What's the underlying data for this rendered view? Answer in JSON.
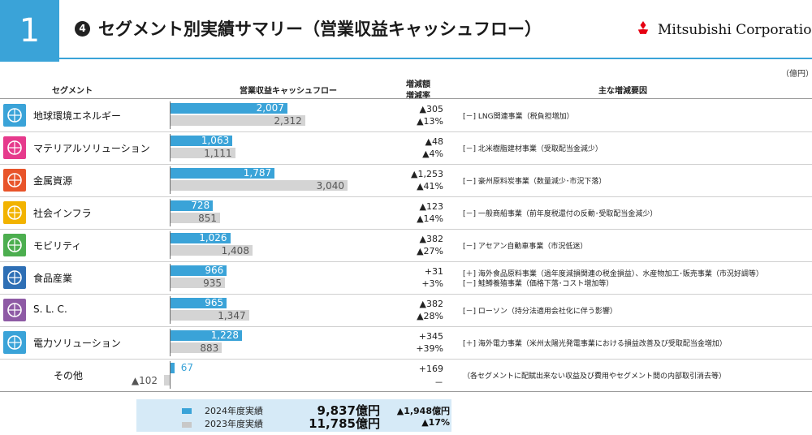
{
  "header": {
    "slide_number": "1",
    "title_marker": "4",
    "title": "セグメント別実績サマリー（営業収益キャッシュフロー）",
    "logo_text": "Mitsubishi Corporation"
  },
  "table": {
    "unit": "（億円）",
    "columns": {
      "segment": "セグメント",
      "ocf": "営業収益キャッシュフロー",
      "change_line1": "増減額",
      "change_line2": "増減率",
      "reasons": "主な増減要因"
    }
  },
  "chart_data": {
    "type": "bar",
    "title": "",
    "categories": [
      "地球環境エネルギー",
      "マテリアルソリューション",
      "金属資源",
      "社会インフラ",
      "モビリティ",
      "食品産業",
      "S. L. C.",
      "電力ソリューション",
      "その他"
    ],
    "series": [
      {
        "name": "2024年度実績",
        "values": [
          2007,
          1063,
          1787,
          728,
          1026,
          966,
          965,
          1228,
          67
        ],
        "color": "#3aa3d8"
      },
      {
        "name": "2023年度実績",
        "values": [
          2312,
          1111,
          3040,
          851,
          1408,
          935,
          1347,
          883,
          -102
        ],
        "color": "#d4d4d4"
      }
    ],
    "xlabel": "",
    "ylabel": "",
    "xlim": [
      -102,
      3040
    ]
  },
  "rows": [
    {
      "name": "地球環境エネルギー",
      "v24": "2,007",
      "v23": "2,312",
      "chg_amt": "▲305",
      "chg_rate": "▲13%",
      "reasons": [
        "[－] LNG関連事業（税負担増加）"
      ],
      "icon_name": "globe-icon",
      "icon_color": "#3aa3d8"
    },
    {
      "name": "マテリアルソリューション",
      "v24": "1,063",
      "v23": "1,111",
      "chg_amt": "▲48",
      "chg_rate": "▲4%",
      "reasons": [
        "[－] 北米樹脂建材事業（受取配当金減少）"
      ],
      "icon_name": "materials-icon",
      "icon_color": "#e63a8c"
    },
    {
      "name": "金属資源",
      "v24": "1,787",
      "v23": "3,040",
      "chg_amt": "▲1,253",
      "chg_rate": "▲41%",
      "reasons": [
        "[－] 豪州原料炭事業（数量減少･市況下落）"
      ],
      "icon_name": "mining-truck-icon",
      "icon_color": "#e8542a"
    },
    {
      "name": "社会インフラ",
      "v24": "728",
      "v23": "851",
      "chg_amt": "▲123",
      "chg_rate": "▲14%",
      "reasons": [
        "[－] 一般商船事業（前年度税還付の反動･受取配当金減少）"
      ],
      "icon_name": "city-icon",
      "icon_color": "#f2b300"
    },
    {
      "name": "モビリティ",
      "v24": "1,026",
      "v23": "1,408",
      "chg_amt": "▲382",
      "chg_rate": "▲27%",
      "reasons": [
        "[－] アセアン自動車事業（市況低迷）"
      ],
      "icon_name": "car-icon",
      "icon_color": "#4cae4f"
    },
    {
      "name": "食品産業",
      "v24": "966",
      "v23": "935",
      "chg_amt": "+31",
      "chg_rate": "+3%",
      "reasons": [
        "[＋] 海外食品原料事業（過年度減損関連の税金損益）、水産物加工･販売事業（市況好調等）",
        "[－] 鮭鱒養殖事業（価格下落･コスト増加等）"
      ],
      "icon_name": "food-icon",
      "icon_color": "#2e6fb5"
    },
    {
      "name": "S. L. C.",
      "v24": "965",
      "v23": "1,347",
      "chg_amt": "▲382",
      "chg_rate": "▲28%",
      "reasons": [
        "[－] ローソン（持分法適用会社化に伴う影響）"
      ],
      "icon_name": "people-icon",
      "icon_color": "#8e5aa5"
    },
    {
      "name": "電力ソリューション",
      "v24": "1,228",
      "v23": "883",
      "chg_amt": "+345",
      "chg_rate": "+39%",
      "reasons": [
        "[＋] 海外電力事業（米州太陽光発電事業における損益改善及び受取配当金増加）"
      ],
      "icon_name": "solar-panel-icon",
      "icon_color": "#3aa3d8"
    },
    {
      "name": "その他",
      "v24": "67",
      "v23": "▲102",
      "chg_amt": "+169",
      "chg_rate": "－",
      "reasons": [
        "（各セグメントに配賦出来ない収益及び費用やセグメント間の内部取引消去等）"
      ],
      "icon_name": "",
      "icon_color": ""
    }
  ],
  "legend": {
    "items": [
      {
        "label": "2024年度実績",
        "color": "#3aa3d8",
        "total": "9,837億円",
        "chg": "▲1,948億円"
      },
      {
        "label": "2023年度実績",
        "color": "#c8c8c8",
        "total": "11,785億円",
        "chg": "▲17%"
      }
    ]
  }
}
